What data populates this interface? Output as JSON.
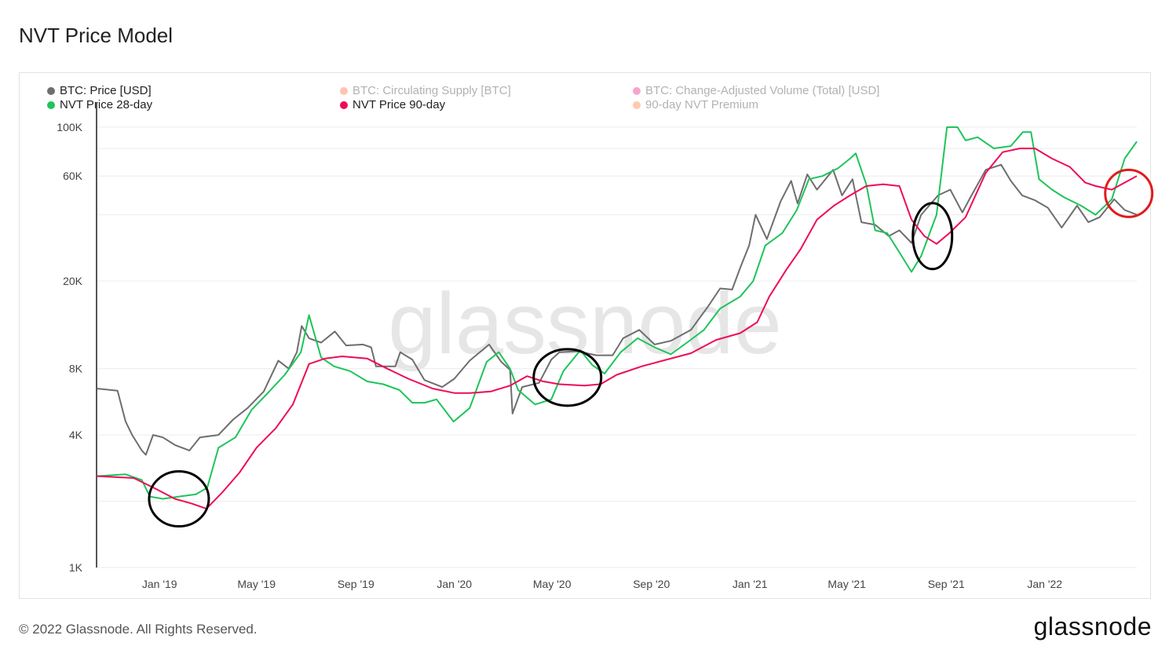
{
  "page": {
    "title": "NVT Price Model",
    "copyright": "© 2022 Glassnode. All Rights Reserved.",
    "logo_text": "glassnode",
    "watermark": "glassnode"
  },
  "chart_data": {
    "type": "line",
    "title": "NVT Price Model",
    "y_scale": "log",
    "ylim": [
      1000,
      130000
    ],
    "y_ticks": [
      {
        "value": 1000,
        "label": "1K"
      },
      {
        "value": 4000,
        "label": "4K"
      },
      {
        "value": 8000,
        "label": "8K"
      },
      {
        "value": 20000,
        "label": "20K"
      },
      {
        "value": 60000,
        "label": "60K"
      },
      {
        "value": 100000,
        "label": "100K"
      }
    ],
    "x_ticks": [
      {
        "date": "2019-01-01",
        "label": "Jan '19"
      },
      {
        "date": "2019-05-01",
        "label": "May '19"
      },
      {
        "date": "2019-09-01",
        "label": "Sep '19"
      },
      {
        "date": "2020-01-01",
        "label": "Jan '20"
      },
      {
        "date": "2020-05-01",
        "label": "May '20"
      },
      {
        "date": "2020-09-01",
        "label": "Sep '20"
      },
      {
        "date": "2021-01-01",
        "label": "Jan '21"
      },
      {
        "date": "2021-05-01",
        "label": "May '21"
      },
      {
        "date": "2021-09-01",
        "label": "Sep '21"
      },
      {
        "date": "2022-01-01",
        "label": "Jan '22"
      }
    ],
    "xlim": [
      "2018-10-15",
      "2022-04-25"
    ],
    "grid": true,
    "legend_position": "top-left",
    "legend": [
      {
        "name": "BTC: Price [USD]",
        "color": "#6e6e6e",
        "active": true
      },
      {
        "name": "BTC: Circulating Supply [BTC]",
        "color": "#ff5a1f",
        "active": false
      },
      {
        "name": "BTC: Change-Adjusted Volume (Total) [USD]",
        "color": "#e6007a",
        "active": false
      },
      {
        "name": "NVT Price 28-day",
        "color": "#1ec45a",
        "active": true
      },
      {
        "name": "NVT Price 90-day",
        "color": "#ee0c55",
        "active": true
      },
      {
        "name": "90-day NVT Premium",
        "color": "#ff6a13",
        "active": false
      }
    ],
    "series": [
      {
        "name": "BTC: Price [USD]",
        "color": "#6e6e6e",
        "points": [
          [
            "2018-10-15",
            6500
          ],
          [
            "2018-11-10",
            6350
          ],
          [
            "2018-11-20",
            4600
          ],
          [
            "2018-11-28",
            4000
          ],
          [
            "2018-12-10",
            3400
          ],
          [
            "2018-12-15",
            3250
          ],
          [
            "2018-12-24",
            4000
          ],
          [
            "2019-01-05",
            3900
          ],
          [
            "2019-01-20",
            3600
          ],
          [
            "2019-02-07",
            3400
          ],
          [
            "2019-02-20",
            3900
          ],
          [
            "2019-03-15",
            4000
          ],
          [
            "2019-04-02",
            4700
          ],
          [
            "2019-04-20",
            5300
          ],
          [
            "2019-05-10",
            6300
          ],
          [
            "2019-05-28",
            8700
          ],
          [
            "2019-06-10",
            8000
          ],
          [
            "2019-06-20",
            9500
          ],
          [
            "2019-06-26",
            12500
          ],
          [
            "2019-07-05",
            11000
          ],
          [
            "2019-07-20",
            10500
          ],
          [
            "2019-08-06",
            11800
          ],
          [
            "2019-08-20",
            10200
          ],
          [
            "2019-09-10",
            10300
          ],
          [
            "2019-09-20",
            10000
          ],
          [
            "2019-09-26",
            8200
          ],
          [
            "2019-10-20",
            8200
          ],
          [
            "2019-10-26",
            9500
          ],
          [
            "2019-11-10",
            8800
          ],
          [
            "2019-11-25",
            7100
          ],
          [
            "2019-12-17",
            6600
          ],
          [
            "2020-01-01",
            7200
          ],
          [
            "2020-01-20",
            8700
          ],
          [
            "2020-02-13",
            10300
          ],
          [
            "2020-02-28",
            8600
          ],
          [
            "2020-03-10",
            7900
          ],
          [
            "2020-03-13",
            5000
          ],
          [
            "2020-03-25",
            6600
          ],
          [
            "2020-04-15",
            6900
          ],
          [
            "2020-04-30",
            8800
          ],
          [
            "2020-05-10",
            9500
          ],
          [
            "2020-06-01",
            9600
          ],
          [
            "2020-06-25",
            9200
          ],
          [
            "2020-07-15",
            9200
          ],
          [
            "2020-07-28",
            11000
          ],
          [
            "2020-08-17",
            12000
          ],
          [
            "2020-09-05",
            10300
          ],
          [
            "2020-09-25",
            10700
          ],
          [
            "2020-10-20",
            12000
          ],
          [
            "2020-11-10",
            15300
          ],
          [
            "2020-11-25",
            18500
          ],
          [
            "2020-12-10",
            18300
          ],
          [
            "2020-12-20",
            23000
          ],
          [
            "2020-12-31",
            29000
          ],
          [
            "2021-01-08",
            40000
          ],
          [
            "2021-01-22",
            31000
          ],
          [
            "2021-02-08",
            46000
          ],
          [
            "2021-02-21",
            57000
          ],
          [
            "2021-03-01",
            45000
          ],
          [
            "2021-03-13",
            61000
          ],
          [
            "2021-03-25",
            52000
          ],
          [
            "2021-04-14",
            64000
          ],
          [
            "2021-04-25",
            49000
          ],
          [
            "2021-05-08",
            58000
          ],
          [
            "2021-05-19",
            37000
          ],
          [
            "2021-06-05",
            36000
          ],
          [
            "2021-06-22",
            32000
          ],
          [
            "2021-07-05",
            34000
          ],
          [
            "2021-07-20",
            29800
          ],
          [
            "2021-08-01",
            40000
          ],
          [
            "2021-08-22",
            49000
          ],
          [
            "2021-09-06",
            52000
          ],
          [
            "2021-09-21",
            41000
          ],
          [
            "2021-10-01",
            48000
          ],
          [
            "2021-10-20",
            64000
          ],
          [
            "2021-11-08",
            67500
          ],
          [
            "2021-11-20",
            57000
          ],
          [
            "2021-12-04",
            49000
          ],
          [
            "2021-12-20",
            46500
          ],
          [
            "2022-01-05",
            43000
          ],
          [
            "2022-01-22",
            35000
          ],
          [
            "2022-02-10",
            44000
          ],
          [
            "2022-02-24",
            37000
          ],
          [
            "2022-03-10",
            39000
          ],
          [
            "2022-03-28",
            47000
          ],
          [
            "2022-04-10",
            42000
          ],
          [
            "2022-04-25",
            40000
          ]
        ]
      },
      {
        "name": "NVT Price 28-day",
        "color": "#1ec45a",
        "points": [
          [
            "2018-10-15",
            2600
          ],
          [
            "2018-11-20",
            2650
          ],
          [
            "2018-12-10",
            2500
          ],
          [
            "2018-12-20",
            2100
          ],
          [
            "2019-01-05",
            2050
          ],
          [
            "2019-01-25",
            2100
          ],
          [
            "2019-02-15",
            2150
          ],
          [
            "2019-03-01",
            2300
          ],
          [
            "2019-03-15",
            3500
          ],
          [
            "2019-04-05",
            3900
          ],
          [
            "2019-04-25",
            5200
          ],
          [
            "2019-05-15",
            6200
          ],
          [
            "2019-06-05",
            7500
          ],
          [
            "2019-06-25",
            9500
          ],
          [
            "2019-07-05",
            14000
          ],
          [
            "2019-07-20",
            9000
          ],
          [
            "2019-08-05",
            8200
          ],
          [
            "2019-08-25",
            7800
          ],
          [
            "2019-09-15",
            7000
          ],
          [
            "2019-10-05",
            6800
          ],
          [
            "2019-10-25",
            6400
          ],
          [
            "2019-11-10",
            5600
          ],
          [
            "2019-11-25",
            5600
          ],
          [
            "2019-12-10",
            5800
          ],
          [
            "2019-12-31",
            4600
          ],
          [
            "2020-01-20",
            5300
          ],
          [
            "2020-02-10",
            8600
          ],
          [
            "2020-02-25",
            9500
          ],
          [
            "2020-03-10",
            8000
          ],
          [
            "2020-03-20",
            6400
          ],
          [
            "2020-04-10",
            5500
          ],
          [
            "2020-04-30",
            5800
          ],
          [
            "2020-05-15",
            7800
          ],
          [
            "2020-06-05",
            9700
          ],
          [
            "2020-06-20",
            8300
          ],
          [
            "2020-07-05",
            7600
          ],
          [
            "2020-07-25",
            9500
          ],
          [
            "2020-08-15",
            11000
          ],
          [
            "2020-09-05",
            10000
          ],
          [
            "2020-09-25",
            9300
          ],
          [
            "2020-10-15",
            10500
          ],
          [
            "2020-11-05",
            12000
          ],
          [
            "2020-11-25",
            15000
          ],
          [
            "2020-12-20",
            17000
          ],
          [
            "2021-01-05",
            20000
          ],
          [
            "2021-01-20",
            29000
          ],
          [
            "2021-02-10",
            33000
          ],
          [
            "2021-02-28",
            42000
          ],
          [
            "2021-03-15",
            58000
          ],
          [
            "2021-04-01",
            60000
          ],
          [
            "2021-04-20",
            65000
          ],
          [
            "2021-05-05",
            72000
          ],
          [
            "2021-05-12",
            76000
          ],
          [
            "2021-05-25",
            55000
          ],
          [
            "2021-06-05",
            34000
          ],
          [
            "2021-06-20",
            33000
          ],
          [
            "2021-07-05",
            27000
          ],
          [
            "2021-07-20",
            22000
          ],
          [
            "2021-08-01",
            26000
          ],
          [
            "2021-08-20",
            40000
          ],
          [
            "2021-09-02",
            100000
          ],
          [
            "2021-09-15",
            100000
          ],
          [
            "2021-09-25",
            87000
          ],
          [
            "2021-10-10",
            90000
          ],
          [
            "2021-10-30",
            80000
          ],
          [
            "2021-11-20",
            82000
          ],
          [
            "2021-12-05",
            95000
          ],
          [
            "2021-12-15",
            95000
          ],
          [
            "2021-12-25",
            58000
          ],
          [
            "2022-01-10",
            52000
          ],
          [
            "2022-01-25",
            48000
          ],
          [
            "2022-02-15",
            44000
          ],
          [
            "2022-03-05",
            40000
          ],
          [
            "2022-03-25",
            47000
          ],
          [
            "2022-04-10",
            72000
          ],
          [
            "2022-04-25",
            86000
          ]
        ]
      },
      {
        "name": "NVT Price 90-day",
        "color": "#ee0c55",
        "points": [
          [
            "2018-10-15",
            2600
          ],
          [
            "2018-11-30",
            2550
          ],
          [
            "2018-12-25",
            2300
          ],
          [
            "2019-01-20",
            2050
          ],
          [
            "2019-02-10",
            1950
          ],
          [
            "2019-02-28",
            1850
          ],
          [
            "2019-03-20",
            2200
          ],
          [
            "2019-04-10",
            2700
          ],
          [
            "2019-05-01",
            3500
          ],
          [
            "2019-05-25",
            4300
          ],
          [
            "2019-06-15",
            5500
          ],
          [
            "2019-07-05",
            8400
          ],
          [
            "2019-07-25",
            8900
          ],
          [
            "2019-08-15",
            9100
          ],
          [
            "2019-09-15",
            8900
          ],
          [
            "2019-10-10",
            8000
          ],
          [
            "2019-11-05",
            7200
          ],
          [
            "2019-12-05",
            6500
          ],
          [
            "2020-01-01",
            6200
          ],
          [
            "2020-01-20",
            6200
          ],
          [
            "2020-02-15",
            6300
          ],
          [
            "2020-03-10",
            6700
          ],
          [
            "2020-03-31",
            7400
          ],
          [
            "2020-04-20",
            7000
          ],
          [
            "2020-05-10",
            6800
          ],
          [
            "2020-06-10",
            6700
          ],
          [
            "2020-06-30",
            6800
          ],
          [
            "2020-07-20",
            7500
          ],
          [
            "2020-08-20",
            8200
          ],
          [
            "2020-09-20",
            8800
          ],
          [
            "2020-10-20",
            9400
          ],
          [
            "2020-11-20",
            10800
          ],
          [
            "2020-12-20",
            11600
          ],
          [
            "2021-01-10",
            13000
          ],
          [
            "2021-01-25",
            17000
          ],
          [
            "2021-02-15",
            22500
          ],
          [
            "2021-03-05",
            28000
          ],
          [
            "2021-03-25",
            38000
          ],
          [
            "2021-04-15",
            44000
          ],
          [
            "2021-05-05",
            49000
          ],
          [
            "2021-05-25",
            54000
          ],
          [
            "2021-06-15",
            55000
          ],
          [
            "2021-07-05",
            54000
          ],
          [
            "2021-07-20",
            38000
          ],
          [
            "2021-08-05",
            32000
          ],
          [
            "2021-08-20",
            29500
          ],
          [
            "2021-09-05",
            33000
          ],
          [
            "2021-09-25",
            39000
          ],
          [
            "2021-10-20",
            62000
          ],
          [
            "2021-11-10",
            77000
          ],
          [
            "2021-12-01",
            80000
          ],
          [
            "2021-12-20",
            80000
          ],
          [
            "2022-01-10",
            72000
          ],
          [
            "2022-02-01",
            66000
          ],
          [
            "2022-02-20",
            56000
          ],
          [
            "2022-03-05",
            54000
          ],
          [
            "2022-03-25",
            52000
          ],
          [
            "2022-04-10",
            56000
          ],
          [
            "2022-04-25",
            60000
          ]
        ]
      }
    ],
    "annotations": [
      {
        "shape": "ellipse",
        "color": "#000000",
        "center": [
          "2019-01-25",
          2050
        ]
      },
      {
        "shape": "ellipse",
        "color": "#000000",
        "center": [
          "2020-05-20",
          7300
        ]
      },
      {
        "shape": "ellipse",
        "color": "#000000",
        "center": [
          "2021-08-15",
          32000
        ]
      },
      {
        "shape": "ellipse",
        "color": "#e21b1b",
        "center": [
          "2022-04-15",
          50000
        ]
      }
    ]
  }
}
